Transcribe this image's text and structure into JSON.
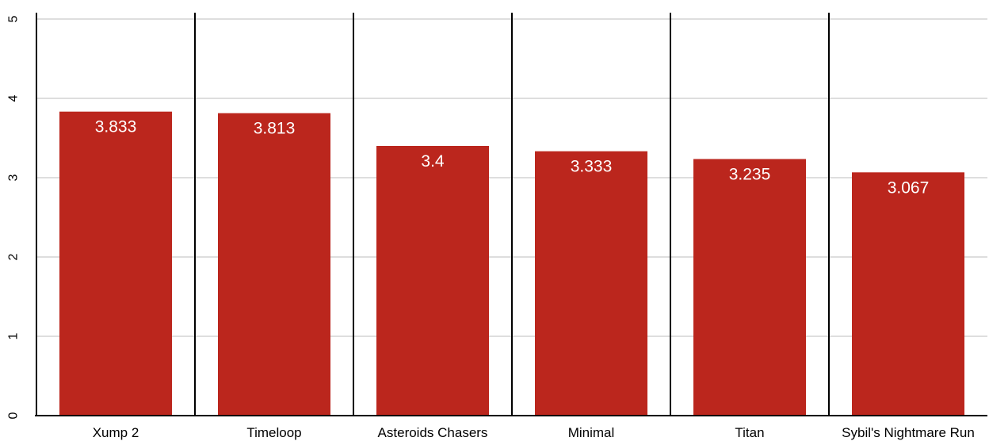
{
  "chart_data": {
    "type": "bar",
    "categories": [
      "Xump 2",
      "Timeloop",
      "Asteroids Chasers",
      "Minimal",
      "Titan",
      "Sybil's Nightmare Run"
    ],
    "values": [
      3.833,
      3.813,
      3.4,
      3.333,
      3.235,
      3.067
    ],
    "value_labels": [
      "3.833",
      "3.813",
      "3.4",
      "3.333",
      "3.235",
      "3.067"
    ],
    "title": "",
    "xlabel": "",
    "ylabel": "",
    "ylim": [
      0,
      5
    ],
    "yticks": [
      "0",
      "1",
      "2",
      "3",
      "4",
      "5"
    ],
    "grid": true,
    "legend": "none",
    "colors": {
      "bar": "#bb261d",
      "gridline": "#bdbdbd",
      "separator": "#000000",
      "label": "#ffffff"
    }
  }
}
